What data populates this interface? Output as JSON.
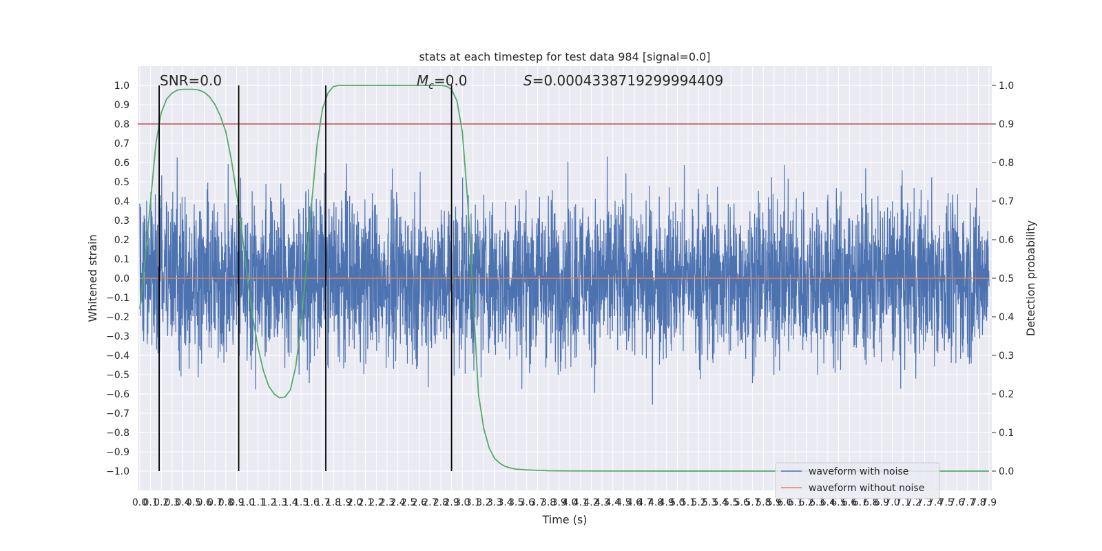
{
  "chart_data": {
    "type": "line",
    "title": "stats at each timestep for test data 984 [signal=0.0]",
    "xlabel": "Time (s)",
    "ylabel_left": "Whitened strain",
    "ylabel_right": "Detection probability",
    "xlim": [
      0.0,
      7.9
    ],
    "ylim_left": [
      -1.1,
      1.1
    ],
    "ylim_right": [
      -0.05,
      1.05
    ],
    "x_ticks": [
      "0.0",
      "0.1",
      "0.2",
      "0.3",
      "0.4",
      "0.5",
      "0.6",
      "0.7",
      "0.8",
      "0.9",
      "1.0",
      "1.1",
      "1.2",
      "1.3",
      "1.4",
      "1.5",
      "1.6",
      "1.7",
      "1.8",
      "1.9",
      "2.0",
      "2.1",
      "2.2",
      "2.3",
      "2.4",
      "2.5",
      "2.6",
      "2.7",
      "2.8",
      "2.9",
      "3.0",
      "3.1",
      "3.2",
      "3.3",
      "3.4",
      "3.5",
      "3.6",
      "3.7",
      "3.8",
      "3.9",
      "4.0",
      "4.1",
      "4.2",
      "4.3",
      "4.4",
      "4.5",
      "4.6",
      "4.7",
      "4.8",
      "4.9",
      "5.0",
      "5.1",
      "5.2",
      "5.3",
      "5.4",
      "5.5",
      "5.6",
      "5.7",
      "5.8",
      "5.9",
      "6.0",
      "6.1",
      "6.2",
      "6.3",
      "6.4",
      "6.5",
      "6.6",
      "6.7",
      "6.8",
      "6.9",
      "7.0",
      "7.1",
      "7.2",
      "7.3",
      "7.4",
      "7.5",
      "7.6",
      "7.7",
      "7.8",
      "7.9"
    ],
    "y_ticks_left": [
      "−1.0",
      "−0.9",
      "−0.8",
      "−0.7",
      "−0.6",
      "−0.5",
      "−0.4",
      "−0.3",
      "−0.2",
      "−0.1",
      "0.0",
      "0.1",
      "0.2",
      "0.3",
      "0.4",
      "0.5",
      "0.6",
      "0.7",
      "0.8",
      "0.9",
      "1.0"
    ],
    "y_ticks_right": [
      "0.0",
      "0.1",
      "0.2",
      "0.3",
      "0.4",
      "0.5",
      "0.6",
      "0.7",
      "0.8",
      "0.9",
      "1.0"
    ],
    "annotations": {
      "snr": "SNR=0.0",
      "mc_sym": "M",
      "mc_sub": "c",
      "mc_val": "=0.0",
      "s_sym": "S",
      "s_val": "=0.0004338719299994409"
    },
    "legend": {
      "placement": "lower-right",
      "entries": [
        {
          "label": "waveform with noise",
          "color": "#4c72b0"
        },
        {
          "label": "waveform without noise",
          "color": "#dd8452"
        }
      ]
    },
    "series": [
      {
        "name": "waveform with noise",
        "color": "#4c72b0",
        "axis": "left",
        "kind": "noise",
        "amplitude": 0.35
      },
      {
        "name": "waveform without noise",
        "color": "#dd8452",
        "axis": "left",
        "x": [
          0.0,
          7.9
        ],
        "y": [
          0.0,
          0.0
        ]
      },
      {
        "color": "#55a868",
        "axis": "right",
        "x": [
          0.0,
          0.05,
          0.1,
          0.15,
          0.2,
          0.25,
          0.3,
          0.35,
          0.4,
          0.45,
          0.5,
          0.55,
          0.6,
          0.65,
          0.7,
          0.75,
          0.8,
          0.85,
          0.9,
          0.95,
          1.0,
          1.05,
          1.1,
          1.15,
          1.2,
          1.25,
          1.3,
          1.35,
          1.4,
          1.45,
          1.5,
          1.55,
          1.6,
          1.65,
          1.7,
          1.75,
          1.8,
          1.85,
          1.9,
          1.95,
          2.0,
          2.5,
          2.8,
          2.85,
          2.9,
          2.95,
          3.0,
          3.05,
          3.1,
          3.15,
          3.2,
          3.25,
          3.3,
          3.35,
          3.4,
          3.45,
          3.5,
          3.6,
          3.7,
          3.8,
          4.0,
          4.5,
          5.0,
          6.0,
          7.0,
          7.9
        ],
        "y": [
          0.42,
          0.55,
          0.7,
          0.85,
          0.93,
          0.965,
          0.98,
          0.988,
          0.99,
          0.99,
          0.99,
          0.988,
          0.982,
          0.97,
          0.95,
          0.92,
          0.88,
          0.81,
          0.72,
          0.62,
          0.5,
          0.4,
          0.32,
          0.26,
          0.22,
          0.2,
          0.19,
          0.192,
          0.21,
          0.27,
          0.38,
          0.53,
          0.7,
          0.85,
          0.94,
          0.98,
          0.997,
          1.0,
          1.0,
          1.0,
          1.0,
          1.0,
          1.0,
          0.998,
          0.99,
          0.96,
          0.88,
          0.7,
          0.45,
          0.2,
          0.11,
          0.06,
          0.033,
          0.02,
          0.012,
          0.008,
          0.005,
          0.003,
          0.002,
          0.001,
          0.0005,
          0.0002,
          0.0001,
          0.0,
          0.0,
          0.0
        ]
      }
    ],
    "vlines": [
      0.18,
      0.92,
      1.73,
      2.9
    ],
    "vline_color": "#000000",
    "hline_right": {
      "y": 0.9,
      "color": "#c44e52"
    },
    "grid": true,
    "background": "#eaeaf2"
  }
}
